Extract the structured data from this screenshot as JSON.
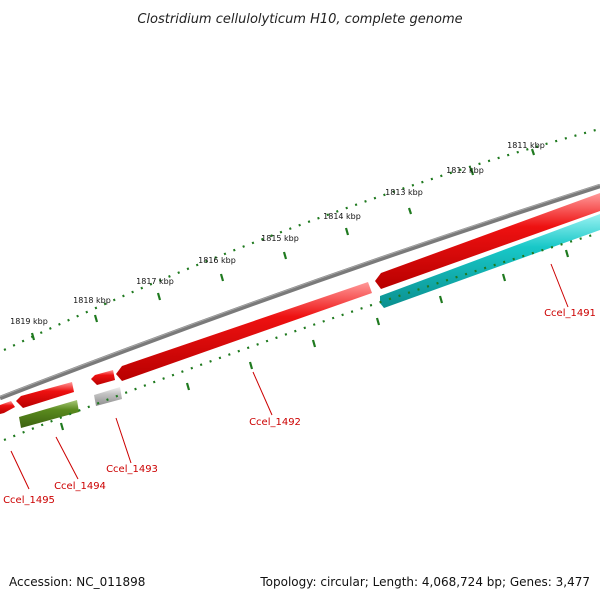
{
  "title": "Clostridium cellulolyticum H10, complete genome",
  "accession": "Accession: NC_011898",
  "summary": "Topology: circular; Length: 4,068,724 bp; Genes: 3,477",
  "scale_labels": [
    "1811 kbp",
    "1812 kbp",
    "1813 kbp",
    "1814 kbp",
    "1815 kbp",
    "1816 kbp",
    "1817 kbp",
    "1818 kbp",
    "1819 kbp"
  ],
  "genes": [
    {
      "name": "Ccel_1491",
      "color": "#18c8c8",
      "strand": "reverse",
      "type": "CDS"
    },
    {
      "name": "Ccel_1492",
      "color": "#ee1111",
      "strand": "forward",
      "type": "CDS"
    },
    {
      "name": "Ccel_1493",
      "color": "#b0b0b0",
      "strand": "reverse",
      "type": "other"
    },
    {
      "name": "Ccel_1494",
      "color": "#5a8a1e",
      "strand": "reverse",
      "type": "CDS"
    },
    {
      "name": "Ccel_1495",
      "color": "#ee1111",
      "strand": "forward",
      "type": "CDS"
    }
  ],
  "colors": {
    "backbone": "#7a7a7a",
    "tick": "#1f7a1f",
    "label": "#cc0000"
  }
}
